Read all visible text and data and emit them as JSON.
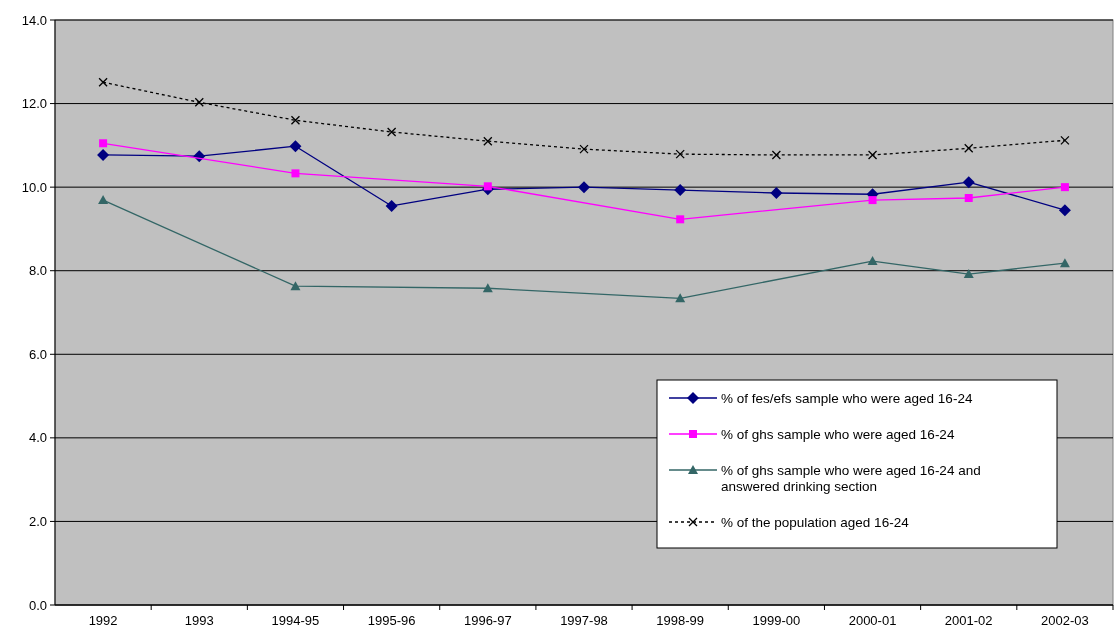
{
  "chart_data": {
    "type": "line",
    "categories": [
      "1992",
      "1993",
      "1994-95",
      "1995-96",
      "1996-97",
      "1997-98",
      "1998-99",
      "1999-00",
      "2000-01",
      "2001-02",
      "2002-03"
    ],
    "ylim": [
      0,
      14
    ],
    "yticks": [
      {
        "value": 0,
        "label": "0.0"
      },
      {
        "value": 2,
        "label": "2.0"
      },
      {
        "value": 4,
        "label": "4.0"
      },
      {
        "value": 6,
        "label": "6.0"
      },
      {
        "value": 8,
        "label": "8.0"
      },
      {
        "value": 10,
        "label": "10.0"
      },
      {
        "value": 12,
        "label": "12.0"
      },
      {
        "value": 14,
        "label": "14.0"
      }
    ],
    "grid": "y",
    "legend": "bottom right",
    "series": [
      {
        "name": "% of fes/efs sample who were aged 16-24",
        "color": "#000080",
        "marker": "diamond",
        "line_style": "solid",
        "values": [
          10.77,
          10.74,
          10.98,
          9.55,
          9.95,
          10.0,
          9.93,
          9.86,
          9.83,
          10.12,
          9.45
        ]
      },
      {
        "name": "% of ghs sample who were aged 16-24",
        "color": "#ff00ff",
        "marker": "square",
        "line_style": "solid",
        "values": [
          11.05,
          null,
          10.33,
          null,
          10.02,
          null,
          9.23,
          null,
          9.69,
          9.74,
          10.0
        ]
      },
      {
        "name": "% of ghs sample who were aged 16-24 and answered drinking section",
        "color": "#336666",
        "marker": "triangle",
        "line_style": "solid",
        "values": [
          9.69,
          null,
          7.63,
          null,
          7.58,
          null,
          7.34,
          null,
          8.23,
          7.92,
          8.18
        ]
      },
      {
        "name": "% of the population aged 16-24",
        "color": "#000000",
        "marker": "cross",
        "line_style": "dotted",
        "values": [
          12.51,
          12.03,
          11.6,
          11.32,
          11.1,
          10.91,
          10.79,
          10.77,
          10.77,
          10.93,
          11.12
        ]
      }
    ]
  }
}
